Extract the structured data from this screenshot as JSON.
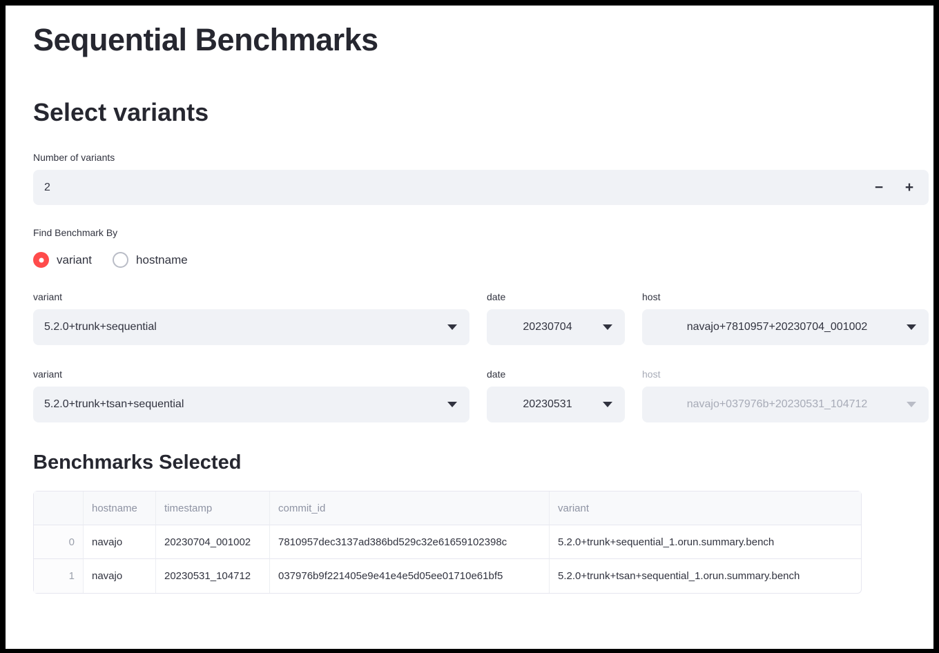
{
  "page": {
    "title": "Sequential Benchmarks"
  },
  "colors": {
    "accent_red": "#ff4b4b",
    "input_background": "#f0f2f6",
    "text_dark": "#31333f",
    "disabled_text": "#a7abb7"
  },
  "select_variants": {
    "heading": "Select variants",
    "number_of_variants": {
      "label": "Number of variants",
      "value": "2",
      "decrement_label": "−",
      "increment_label": "+"
    },
    "find_benchmark_by": {
      "label": "Find Benchmark By",
      "options": [
        {
          "label": "variant",
          "selected": true
        },
        {
          "label": "hostname",
          "selected": false
        }
      ]
    },
    "variant_rows": [
      {
        "variant_label": "variant",
        "variant_value": "5.2.0+trunk+sequential",
        "date_label": "date",
        "date_value": "20230704",
        "host_label": "host",
        "host_value": "navajo+7810957+20230704_001002",
        "host_disabled": false
      },
      {
        "variant_label": "variant",
        "variant_value": "5.2.0+trunk+tsan+sequential",
        "date_label": "date",
        "date_value": "20230531",
        "host_label": "host",
        "host_value": "navajo+037976b+20230531_104712",
        "host_disabled": true
      }
    ]
  },
  "benchmarks_selected": {
    "heading": "Benchmarks Selected",
    "table": {
      "columns": [
        "",
        "hostname",
        "timestamp",
        "commit_id",
        "variant"
      ],
      "rows": [
        [
          "0",
          "navajo",
          "20230704_001002",
          "7810957dec3137ad386bd529c32e61659102398c",
          "5.2.0+trunk+sequential_1.orun.summary.bench"
        ],
        [
          "1",
          "navajo",
          "20230531_104712",
          "037976b9f221405e9e41e4e5d05ee01710e61bf5",
          "5.2.0+trunk+tsan+sequential_1.orun.summary.bench"
        ]
      ]
    }
  }
}
